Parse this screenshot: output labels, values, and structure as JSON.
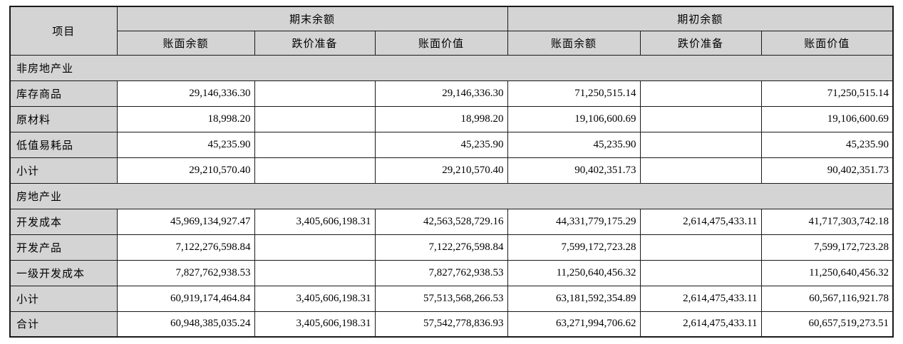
{
  "table": {
    "header": {
      "item_col": "项目",
      "groups": [
        {
          "label": "期末余额",
          "sub": [
            "账面余额",
            "跌价准备",
            "账面价值"
          ]
        },
        {
          "label": "期初余额",
          "sub": [
            "账面余额",
            "跌价准备",
            "账面价值"
          ]
        }
      ]
    },
    "rows": [
      {
        "type": "section",
        "label": "非房地产业"
      },
      {
        "type": "data",
        "label": "库存商品",
        "values": [
          "29,146,336.30",
          "",
          "29,146,336.30",
          "71,250,515.14",
          "",
          "71,250,515.14"
        ]
      },
      {
        "type": "data",
        "label": "原材料",
        "values": [
          "18,998.20",
          "",
          "18,998.20",
          "19,106,600.69",
          "",
          "19,106,600.69"
        ]
      },
      {
        "type": "data",
        "label": "低值易耗品",
        "values": [
          "45,235.90",
          "",
          "45,235.90",
          "45,235.90",
          "",
          "45,235.90"
        ]
      },
      {
        "type": "data",
        "label": "小计",
        "values": [
          "29,210,570.40",
          "",
          "29,210,570.40",
          "90,402,351.73",
          "",
          "90,402,351.73"
        ]
      },
      {
        "type": "section",
        "label": "房地产业"
      },
      {
        "type": "data",
        "label": "开发成本",
        "values": [
          "45,969,134,927.47",
          "3,405,606,198.31",
          "42,563,528,729.16",
          "44,331,779,175.29",
          "2,614,475,433.11",
          "41,717,303,742.18"
        ]
      },
      {
        "type": "data",
        "label": "开发产品",
        "values": [
          "7,122,276,598.84",
          "",
          "7,122,276,598.84",
          "7,599,172,723.28",
          "",
          "7,599,172,723.28"
        ]
      },
      {
        "type": "data",
        "label": "一级开发成本",
        "values": [
          "7,827,762,938.53",
          "",
          "7,827,762,938.53",
          "11,250,640,456.32",
          "",
          "11,250,640,456.32"
        ]
      },
      {
        "type": "data",
        "label": "小计",
        "values": [
          "60,919,174,464.84",
          "3,405,606,198.31",
          "57,513,568,266.53",
          "63,181,592,354.89",
          "2,614,475,433.11",
          "60,567,116,921.78"
        ]
      },
      {
        "type": "data",
        "label": "合计",
        "values": [
          "60,948,385,035.24",
          "3,405,606,198.31",
          "57,542,778,836.93",
          "63,271,994,706.62",
          "2,614,475,433.11",
          "60,657,519,273.51"
        ]
      }
    ]
  },
  "colors": {
    "header_bg": "#d4d4d4",
    "border": "#1a1a1a",
    "text": "#000000",
    "cell_bg": "#ffffff"
  }
}
